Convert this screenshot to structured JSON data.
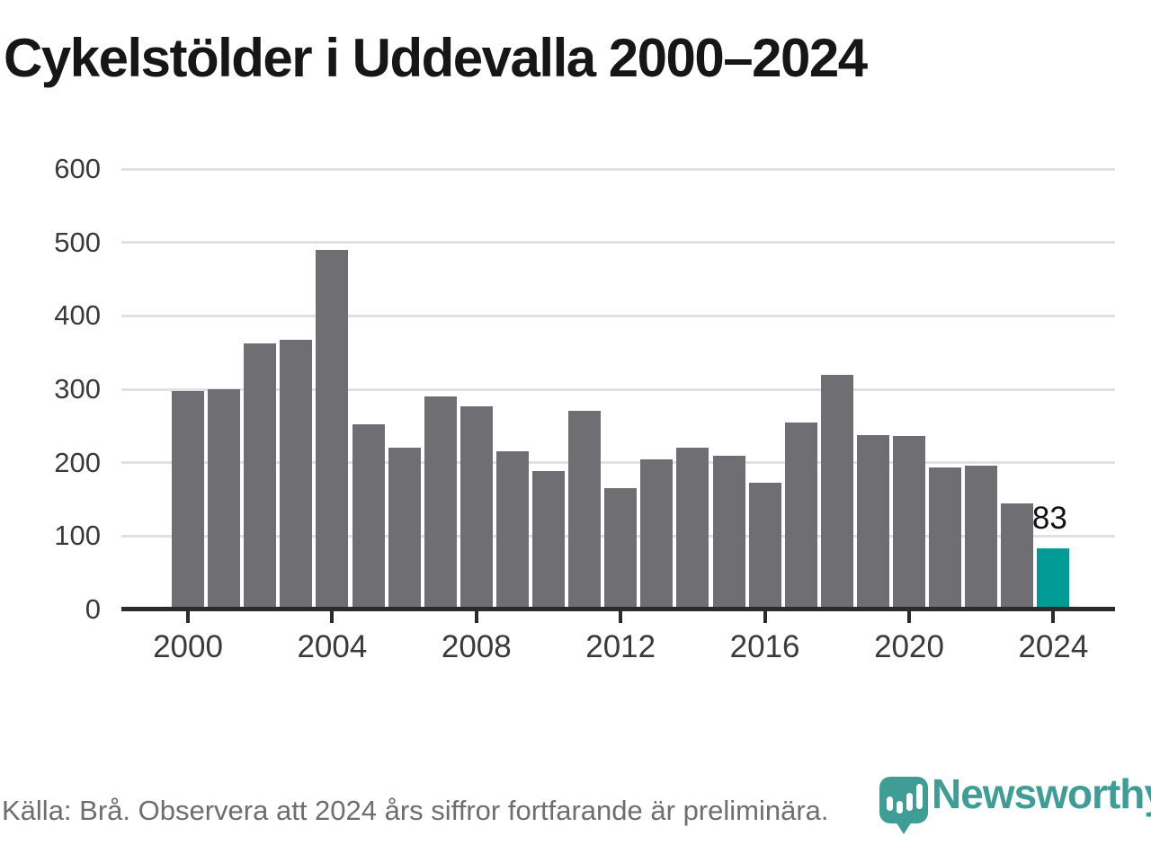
{
  "title": "Cykelstölder i Uddevalla 2000–2024",
  "footer": {
    "source_note": "Källa: Brå. Observera att 2024 års siffror fortfarande är preliminära."
  },
  "branding": {
    "name": "Newsworthy",
    "icon": "newsworthy-pin-barchart-icon",
    "teal": "#3f9d96"
  },
  "colors": {
    "bar": "#6e6e73",
    "highlight": "#009b94",
    "axis": "#2b2b2b",
    "gridline": "#e1e1e1",
    "tick_label": "#3a3a3a",
    "title_text": "#161616",
    "footer_text": "#6e6e6e"
  },
  "chart_data": {
    "type": "bar",
    "title": "Cykelstölder i Uddevalla 2000–2024",
    "x": [
      2000,
      2001,
      2002,
      2003,
      2004,
      2005,
      2006,
      2007,
      2008,
      2009,
      2010,
      2011,
      2012,
      2013,
      2014,
      2015,
      2016,
      2017,
      2018,
      2019,
      2020,
      2021,
      2022,
      2023,
      2024
    ],
    "values": [
      298,
      300,
      363,
      367,
      490,
      252,
      220,
      290,
      277,
      215,
      189,
      271,
      165,
      204,
      220,
      210,
      173,
      255,
      320,
      238,
      236,
      193,
      196,
      144,
      83
    ],
    "bar_color": "#6e6e73",
    "highlight_year": 2024,
    "highlight_color": "#009b94",
    "annotation": {
      "year": 2024,
      "label": "83"
    },
    "xlabel": "",
    "ylabel": "",
    "ylim": [
      0,
      600
    ],
    "yticks": [
      0,
      100,
      200,
      300,
      400,
      500,
      600
    ],
    "xtick_years": [
      2000,
      2004,
      2008,
      2012,
      2016,
      2020,
      2024
    ],
    "grid": "horizontal",
    "legend": "none"
  }
}
